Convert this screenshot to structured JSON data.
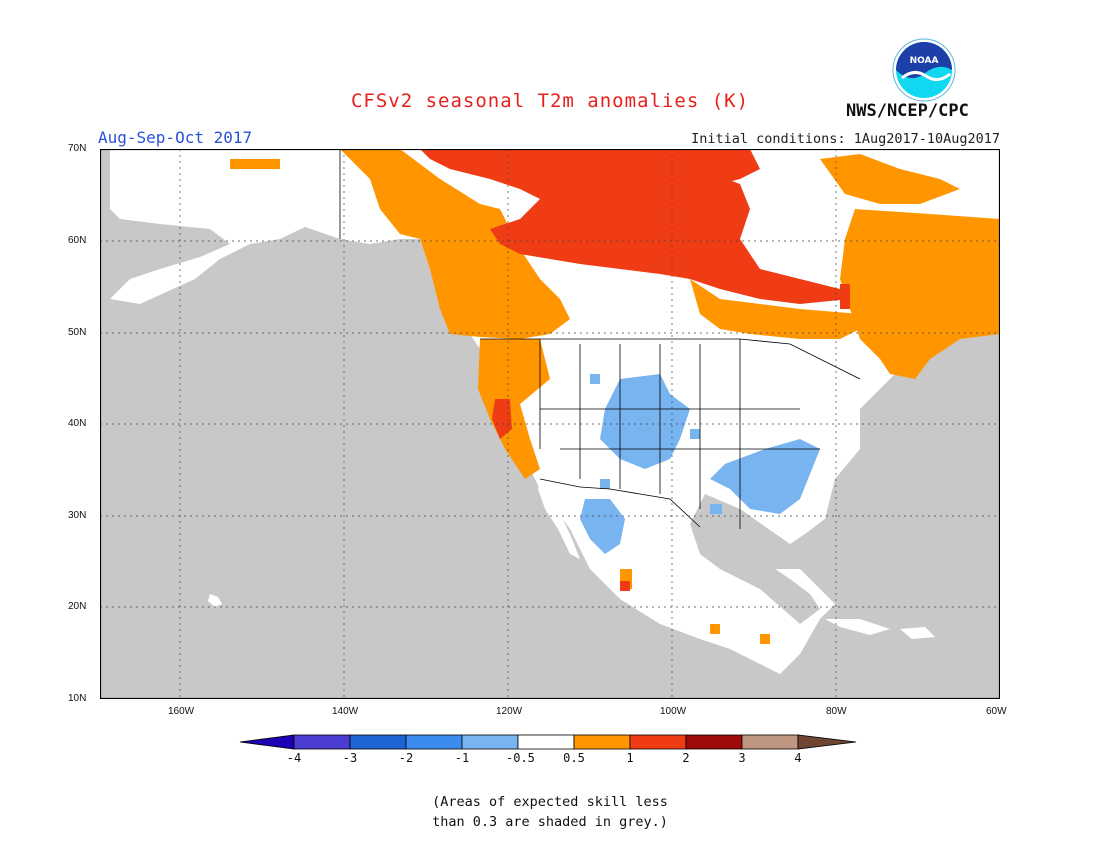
{
  "header": {
    "title": "CFSv2 seasonal T2m anomalies (K)",
    "period": "Aug-Sep-Oct 2017",
    "initial_conditions": "Initial conditions: 1Aug2017-10Aug2017",
    "agency": "NWS/NCEP/CPC",
    "logo_text": "NOAA"
  },
  "axes": {
    "lat_labels": [
      "70N",
      "60N",
      "50N",
      "40N",
      "30N",
      "20N",
      "10N"
    ],
    "lon_labels": [
      "160W",
      "140W",
      "120W",
      "100W",
      "80W",
      "60W"
    ]
  },
  "colorbar": {
    "levels": [
      "-4",
      "-3",
      "-2",
      "-1",
      "-0.5",
      "0.5",
      "1",
      "2",
      "3",
      "4"
    ],
    "colors": [
      "#1e00b4",
      "#4b3cd2",
      "#1e64d2",
      "#3c8cf0",
      "#78b4f0",
      "#ffffff",
      "#ff9600",
      "#f03c14",
      "#a00a0a",
      "#be9682",
      "#6e4632"
    ]
  },
  "map_colors": {
    "ocean_grey": "#c8c8c8",
    "land_white": "#ffffff",
    "warm_orange": "#ff9600",
    "hot_red": "#f03c14",
    "cool_blue": "#78b4f0",
    "line": "#000000",
    "grid": "#444444"
  },
  "note": {
    "line1": "(Areas of expected skill less",
    "line2": "than 0.3 are shaded in grey.)"
  }
}
